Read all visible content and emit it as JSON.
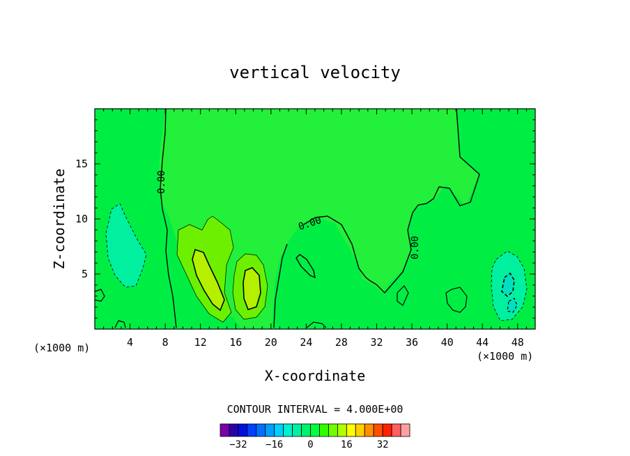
{
  "chart_data": {
    "type": "contour",
    "title": "vertical velocity",
    "xlabel": "X-coordinate",
    "ylabel": "Z-coordinate",
    "x_unit_left": "(×1000 m)",
    "x_unit_right": "(×1000 m)",
    "xlim": [
      0,
      50
    ],
    "ylim": [
      0,
      20
    ],
    "x_ticks": [
      4,
      8,
      12,
      16,
      20,
      24,
      28,
      32,
      36,
      40,
      44,
      48
    ],
    "y_ticks": [
      5,
      10,
      15
    ],
    "contour_interval_text": "CONTOUR INTERVAL = 4.000E+00",
    "contour_interval": 4.0,
    "contour_labels": [
      "0.00",
      "0.00",
      "0.00"
    ],
    "features": [
      {
        "kind": "updraft",
        "center": [
          13.0,
          5.5
        ],
        "max_level": 12
      },
      {
        "kind": "updraft",
        "center": [
          17.5,
          4.5
        ],
        "max_level": 12
      },
      {
        "kind": "downdraft",
        "center": [
          2.0,
          7.0
        ],
        "min_level": -4
      },
      {
        "kind": "downdraft",
        "center": [
          47.0,
          3.5
        ],
        "min_level": -8
      }
    ],
    "colorbar": {
      "levels": [
        -36,
        -32,
        -28,
        -24,
        -20,
        -16,
        -12,
        -8,
        -4,
        0,
        4,
        8,
        12,
        16,
        20,
        24,
        28,
        32,
        36
      ],
      "colors": [
        "#7a00a8",
        "#2a00aa",
        "#0010d8",
        "#0040ff",
        "#0070ff",
        "#00a0ff",
        "#00d0ff",
        "#00f0d0",
        "#00f0a0",
        "#00f070",
        "#00ff40",
        "#30ff00",
        "#70ff00",
        "#b0ff00",
        "#ffff00",
        "#ffd000",
        "#ff9000",
        "#ff5000",
        "#ff2000",
        "#ff6060",
        "#ffa0a0"
      ],
      "tick_labels": [
        "-32",
        "-16",
        "0",
        "16",
        "32"
      ]
    },
    "grid": false,
    "legend": "none"
  }
}
